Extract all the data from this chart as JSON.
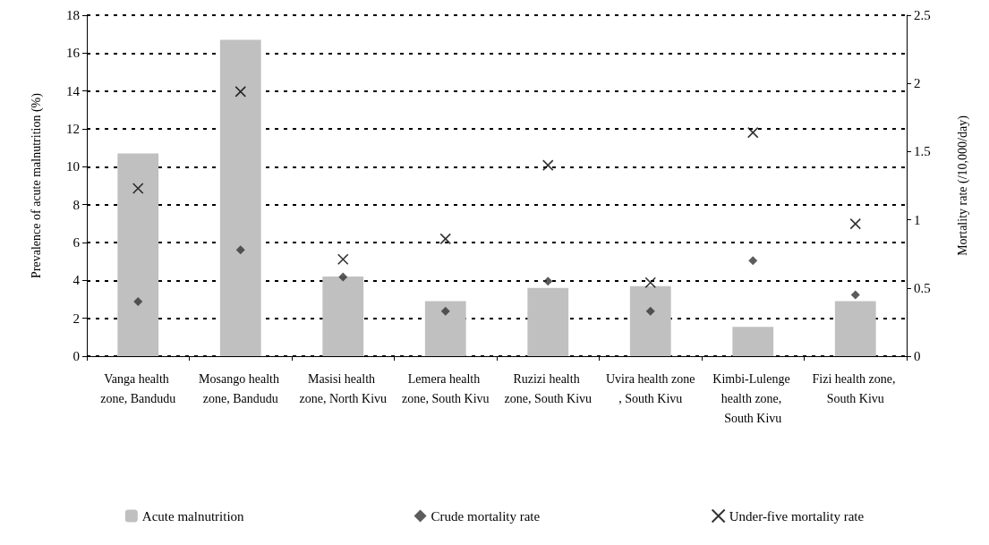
{
  "chart_data": {
    "type": "bar",
    "categories": [
      "Vanga health zone, Bandudu",
      "Mosango health zone, Bandudu",
      "Masisi health zone, North Kivu",
      "Lemera health zone, South Kivu",
      "Ruzizi health zone, South Kivu",
      "Uvira health zone, South Kivu",
      "Kimbi-Lulenge health zone, South Kivu",
      "Fizi health zone, South Kivu"
    ],
    "ylabel": "Prevalence of acute malnutrition (%)",
    "y2label": "Mortality rate (/10,000/day)",
    "series": [
      {
        "name": "Acute malnutrition",
        "color": "#c0c0c0",
        "values": [
          10.7,
          16.7,
          4.2,
          2.9,
          3.6,
          3.7,
          1.55,
          2.9
        ]
      },
      {
        "name": "Crude mortality rate",
        "type": "scatter",
        "marker": "diamond",
        "axis": "y2",
        "color": "#333333",
        "values": [
          0.4,
          0.78,
          0.58,
          0.33,
          0.55,
          0.33,
          0.7,
          0.45
        ]
      },
      {
        "name": "Under-five mortality rate",
        "type": "scatter",
        "marker": "cross",
        "axis": "y2",
        "color": "#000000",
        "values": [
          1.23,
          1.94,
          0.71,
          0.86,
          1.4,
          0.54,
          1.64,
          0.97
        ]
      }
    ],
    "ylim": [
      0,
      18
    ],
    "yticks": [
      0,
      2,
      4,
      6,
      8,
      10,
      12,
      14,
      16,
      18
    ],
    "y2lim": [
      0,
      2.5
    ],
    "y2ticks": [
      0,
      0.5,
      1,
      1.5,
      2,
      2.5
    ],
    "grid": "y",
    "legend": "bottom"
  }
}
